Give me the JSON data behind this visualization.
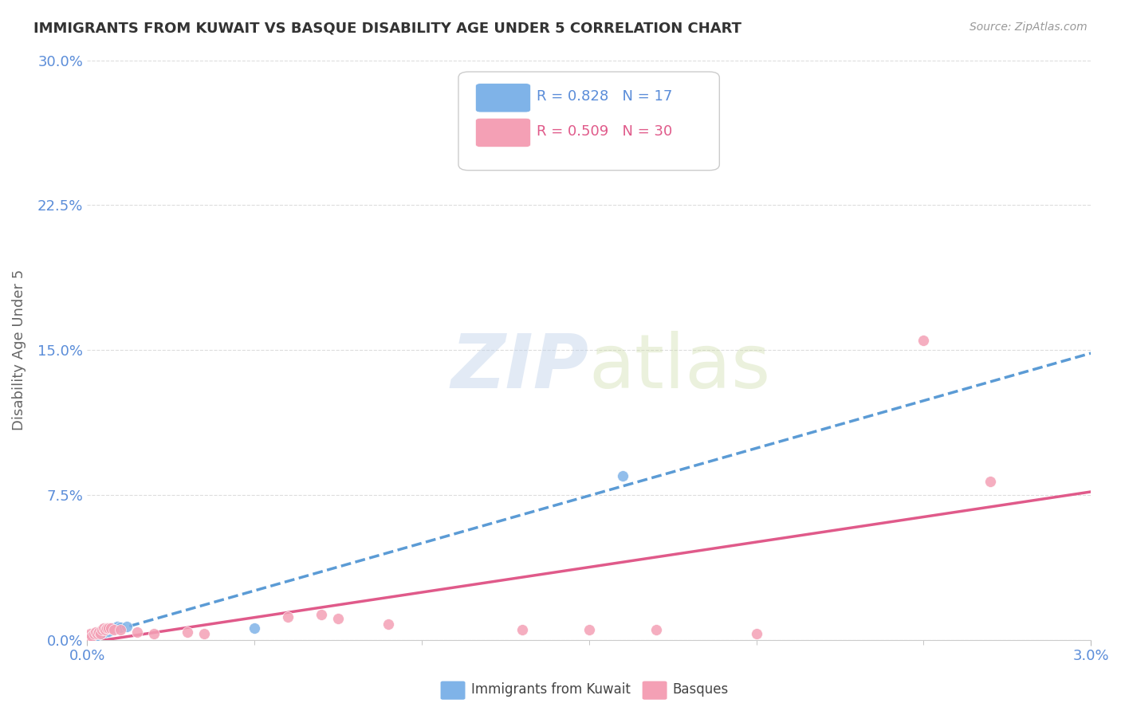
{
  "title": "IMMIGRANTS FROM KUWAIT VS BASQUE DISABILITY AGE UNDER 5 CORRELATION CHART",
  "source": "Source: ZipAtlas.com",
  "ylabel": "Disability Age Under 5",
  "xlim": [
    0.0,
    0.03
  ],
  "ylim": [
    0.0,
    0.3
  ],
  "xtick_labels": [
    "0.0%",
    "3.0%"
  ],
  "xtick_vals": [
    0.0,
    0.03
  ],
  "ytick_labels": [
    "0.0%",
    "7.5%",
    "15.0%",
    "22.5%",
    "30.0%"
  ],
  "yticks": [
    0.0,
    0.075,
    0.15,
    0.225,
    0.3
  ],
  "r_kuwait": 0.828,
  "n_kuwait": 17,
  "r_basque": 0.509,
  "n_basque": 30,
  "kuwait_color": "#7fb3e8",
  "basque_color": "#f4a0b5",
  "kuwait_line_color": "#5b9bd5",
  "basque_line_color": "#e05a8a",
  "axis_label_color": "#5b8dd9",
  "title_color": "#333333",
  "grid_color": "#dddddd",
  "background_color": "#ffffff",
  "kuwait_points": [
    [
      0.00015,
      0.002
    ],
    [
      0.00025,
      0.003
    ],
    [
      0.0003,
      0.0025
    ],
    [
      0.00035,
      0.004
    ],
    [
      0.0004,
      0.003
    ],
    [
      0.00045,
      0.0035
    ],
    [
      0.0005,
      0.005
    ],
    [
      0.00055,
      0.004
    ],
    [
      0.0006,
      0.005
    ],
    [
      0.00065,
      0.0045
    ],
    [
      0.0007,
      0.006
    ],
    [
      0.0008,
      0.006
    ],
    [
      0.0009,
      0.007
    ],
    [
      0.001,
      0.0065
    ],
    [
      0.0012,
      0.007
    ],
    [
      0.005,
      0.006
    ],
    [
      0.016,
      0.085
    ]
  ],
  "basque_points": [
    [
      5e-05,
      0.002
    ],
    [
      0.0001,
      0.003
    ],
    [
      0.00015,
      0.002
    ],
    [
      0.0002,
      0.003
    ],
    [
      0.00025,
      0.004
    ],
    [
      0.0003,
      0.003
    ],
    [
      0.00035,
      0.004
    ],
    [
      0.0004,
      0.003
    ],
    [
      0.00045,
      0.005
    ],
    [
      0.0005,
      0.006
    ],
    [
      0.00055,
      0.005
    ],
    [
      0.0006,
      0.006
    ],
    [
      0.00065,
      0.006
    ],
    [
      0.0007,
      0.006
    ],
    [
      0.0008,
      0.005
    ],
    [
      0.001,
      0.005
    ],
    [
      0.0015,
      0.004
    ],
    [
      0.002,
      0.003
    ],
    [
      0.003,
      0.004
    ],
    [
      0.0035,
      0.003
    ],
    [
      0.006,
      0.012
    ],
    [
      0.007,
      0.013
    ],
    [
      0.0075,
      0.011
    ],
    [
      0.009,
      0.008
    ],
    [
      0.013,
      0.005
    ],
    [
      0.015,
      0.005
    ],
    [
      0.017,
      0.005
    ],
    [
      0.02,
      0.003
    ],
    [
      0.025,
      0.155
    ],
    [
      0.027,
      0.082
    ]
  ]
}
